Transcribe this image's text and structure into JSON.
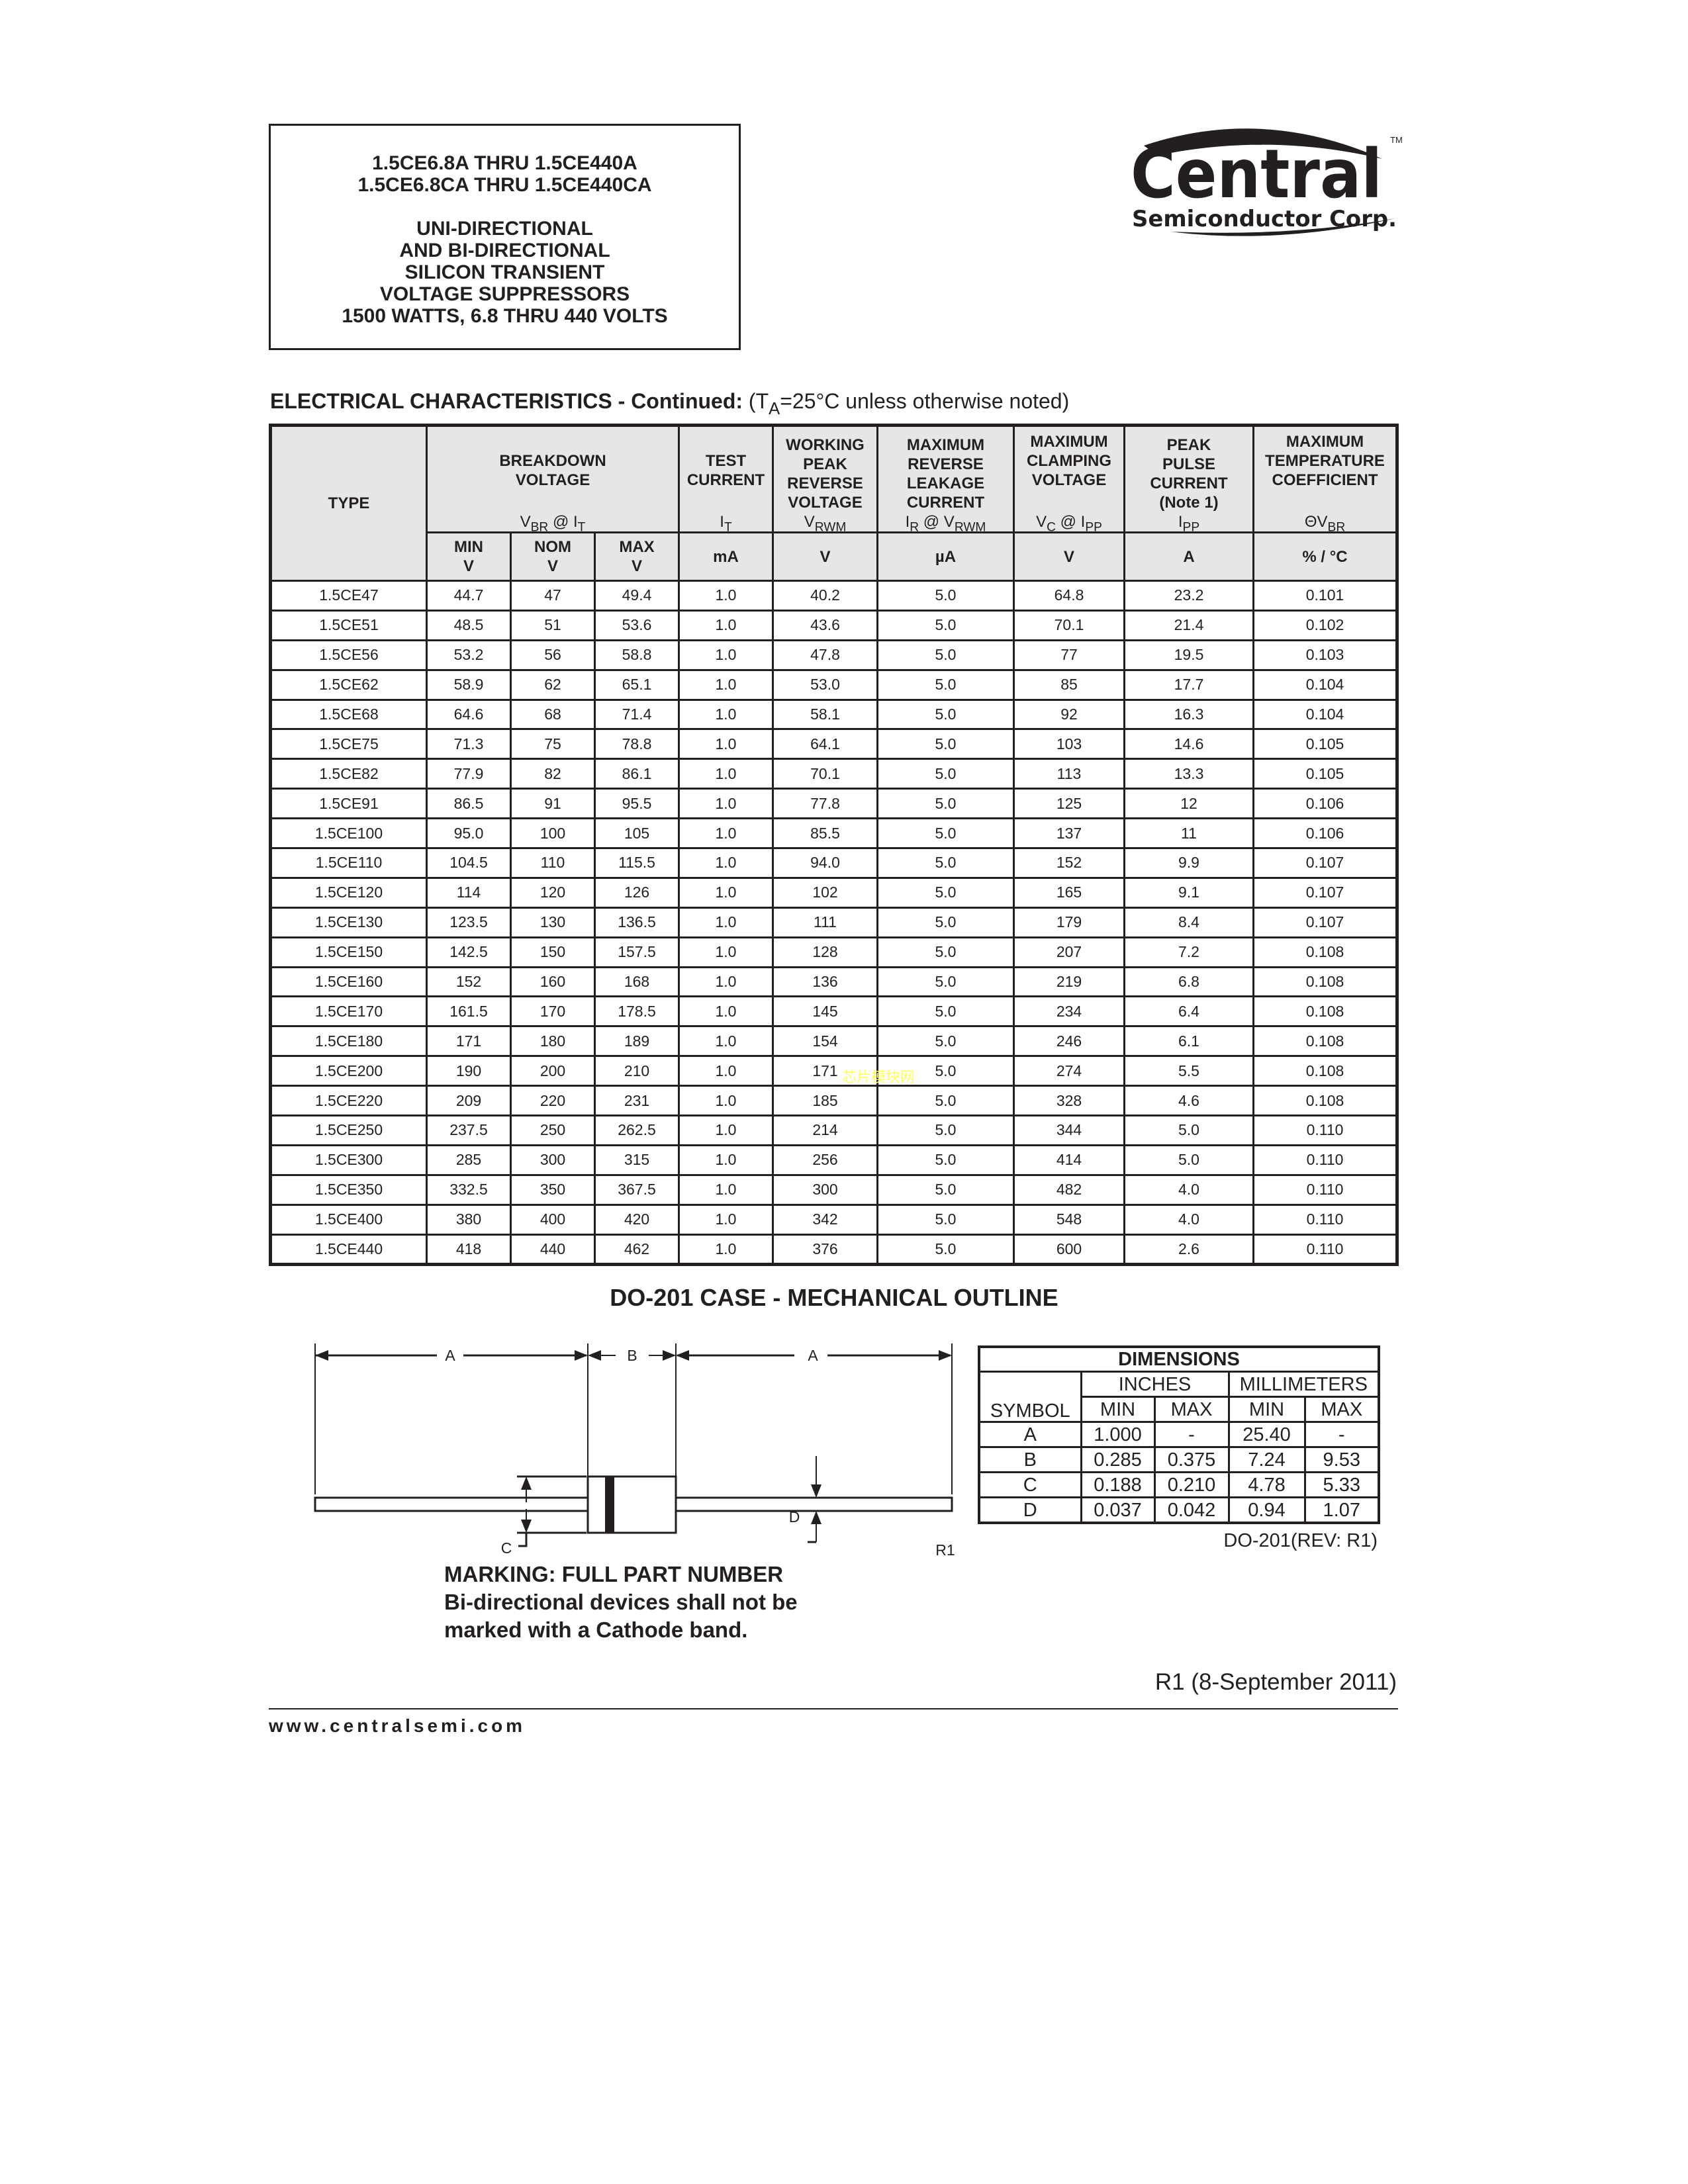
{
  "title_box": {
    "line1": "1.5CE6.8A THRU 1.5CE440A",
    "line2": "1.5CE6.8CA THRU 1.5CE440CA",
    "line3": "UNI-DIRECTIONAL",
    "line4": "AND BI-DIRECTIONAL",
    "line5": "SILICON TRANSIENT",
    "line6": "VOLTAGE SUPPRESSORS",
    "line7": "1500 WATTS, 6.8 THRU 440 VOLTS"
  },
  "logo": {
    "brand": "Central",
    "sub": "Semiconductor Corp.",
    "tm": "TM"
  },
  "ec": {
    "heading_bold": "ELECTRICAL CHARACTERISTICS - Continued:",
    "heading_pre": "(T",
    "heading_sub": "A",
    "heading_post": "=25°C unless otherwise noted)",
    "headers": {
      "type": "TYPE",
      "breakdown": "BREAKDOWN VOLTAGE",
      "breakdown_sym": "V",
      "breakdown_sub": "BR",
      "breakdown_at": " @ I",
      "breakdown_sub2": "T",
      "test": "TEST CURRENT",
      "test_sym": "I",
      "test_sub": "T",
      "working": "WORKING PEAK REVERSE VOLTAGE",
      "working_sym": "V",
      "working_sub": "RWM",
      "leakage": "MAXIMUM REVERSE LEAKAGE CURRENT",
      "leakage_sym": "I",
      "leakage_sub": "R",
      "leakage_at": " @ V",
      "leakage_sub2": "RWM",
      "clamping": "MAXIMUM CLAMPING VOLTAGE",
      "clamping_sym": "V",
      "clamping_sub": "C",
      "clamping_at": " @ I",
      "clamping_sub2": "PP",
      "pulse": "PEAK PULSE CURRENT (Note 1)",
      "pulse_sym": "I",
      "pulse_sub": "PP",
      "temp": "MAXIMUM TEMPERATURE COEFFICIENT",
      "temp_sym": "ΘV",
      "temp_sub": "BR"
    },
    "units": {
      "min": "MIN",
      "nom": "NOM",
      "max": "MAX",
      "v": "V",
      "ma": "mA",
      "ua": "µA",
      "a": "A",
      "pct": "% / °C"
    },
    "rows": [
      [
        "1.5CE47",
        "44.7",
        "47",
        "49.4",
        "1.0",
        "40.2",
        "5.0",
        "64.8",
        "23.2",
        "0.101"
      ],
      [
        "1.5CE51",
        "48.5",
        "51",
        "53.6",
        "1.0",
        "43.6",
        "5.0",
        "70.1",
        "21.4",
        "0.102"
      ],
      [
        "1.5CE56",
        "53.2",
        "56",
        "58.8",
        "1.0",
        "47.8",
        "5.0",
        "77",
        "19.5",
        "0.103"
      ],
      [
        "1.5CE62",
        "58.9",
        "62",
        "65.1",
        "1.0",
        "53.0",
        "5.0",
        "85",
        "17.7",
        "0.104"
      ],
      [
        "1.5CE68",
        "64.6",
        "68",
        "71.4",
        "1.0",
        "58.1",
        "5.0",
        "92",
        "16.3",
        "0.104"
      ],
      [
        "1.5CE75",
        "71.3",
        "75",
        "78.8",
        "1.0",
        "64.1",
        "5.0",
        "103",
        "14.6",
        "0.105"
      ],
      [
        "1.5CE82",
        "77.9",
        "82",
        "86.1",
        "1.0",
        "70.1",
        "5.0",
        "113",
        "13.3",
        "0.105"
      ],
      [
        "1.5CE91",
        "86.5",
        "91",
        "95.5",
        "1.0",
        "77.8",
        "5.0",
        "125",
        "12",
        "0.106"
      ],
      [
        "1.5CE100",
        "95.0",
        "100",
        "105",
        "1.0",
        "85.5",
        "5.0",
        "137",
        "11",
        "0.106"
      ],
      [
        "1.5CE110",
        "104.5",
        "110",
        "115.5",
        "1.0",
        "94.0",
        "5.0",
        "152",
        "9.9",
        "0.107"
      ],
      [
        "1.5CE120",
        "114",
        "120",
        "126",
        "1.0",
        "102",
        "5.0",
        "165",
        "9.1",
        "0.107"
      ],
      [
        "1.5CE130",
        "123.5",
        "130",
        "136.5",
        "1.0",
        "111",
        "5.0",
        "179",
        "8.4",
        "0.107"
      ],
      [
        "1.5CE150",
        "142.5",
        "150",
        "157.5",
        "1.0",
        "128",
        "5.0",
        "207",
        "7.2",
        "0.108"
      ],
      [
        "1.5CE160",
        "152",
        "160",
        "168",
        "1.0",
        "136",
        "5.0",
        "219",
        "6.8",
        "0.108"
      ],
      [
        "1.5CE170",
        "161.5",
        "170",
        "178.5",
        "1.0",
        "145",
        "5.0",
        "234",
        "6.4",
        "0.108"
      ],
      [
        "1.5CE180",
        "171",
        "180",
        "189",
        "1.0",
        "154",
        "5.0",
        "246",
        "6.1",
        "0.108"
      ],
      [
        "1.5CE200",
        "190",
        "200",
        "210",
        "1.0",
        "171",
        "5.0",
        "274",
        "5.5",
        "0.108"
      ],
      [
        "1.5CE220",
        "209",
        "220",
        "231",
        "1.0",
        "185",
        "5.0",
        "328",
        "4.6",
        "0.108"
      ],
      [
        "1.5CE250",
        "237.5",
        "250",
        "262.5",
        "1.0",
        "214",
        "5.0",
        "344",
        "5.0",
        "0.110"
      ],
      [
        "1.5CE300",
        "285",
        "300",
        "315",
        "1.0",
        "256",
        "5.0",
        "414",
        "5.0",
        "0.110"
      ],
      [
        "1.5CE350",
        "332.5",
        "350",
        "367.5",
        "1.0",
        "300",
        "5.0",
        "482",
        "4.0",
        "0.110"
      ],
      [
        "1.5CE400",
        "380",
        "400",
        "420",
        "1.0",
        "342",
        "5.0",
        "548",
        "4.0",
        "0.110"
      ],
      [
        "1.5CE440",
        "418",
        "440",
        "462",
        "1.0",
        "376",
        "5.0",
        "600",
        "2.6",
        "0.110"
      ]
    ]
  },
  "watermark": "芯片模块网",
  "outline": {
    "heading": "DO-201 CASE - MECHANICAL OUTLINE",
    "labels": {
      "a": "A",
      "b": "B",
      "c": "C",
      "d": "D",
      "r1": "R1"
    },
    "dimensions": {
      "title": "DIMENSIONS",
      "inches": "INCHES",
      "millimeters": "MILLIMETERS",
      "symbol": "SYMBOL",
      "min": "MIN",
      "max": "MAX",
      "rows": [
        [
          "A",
          "1.000",
          "-",
          "25.40",
          "-"
        ],
        [
          "B",
          "0.285",
          "0.375",
          "7.24",
          "9.53"
        ],
        [
          "C",
          "0.188",
          "0.210",
          "4.78",
          "5.33"
        ],
        [
          "D",
          "0.037",
          "0.042",
          "0.94",
          "1.07"
        ]
      ],
      "rev": "DO-201(REV: R1)"
    }
  },
  "marking": {
    "line1": "MARKING: FULL PART NUMBER",
    "line2": "Bi-directional devices shall not be",
    "line3": "marked with a Cathode band."
  },
  "revision": "R1 (8-September 2011)",
  "website": "www.centralsemi.com"
}
